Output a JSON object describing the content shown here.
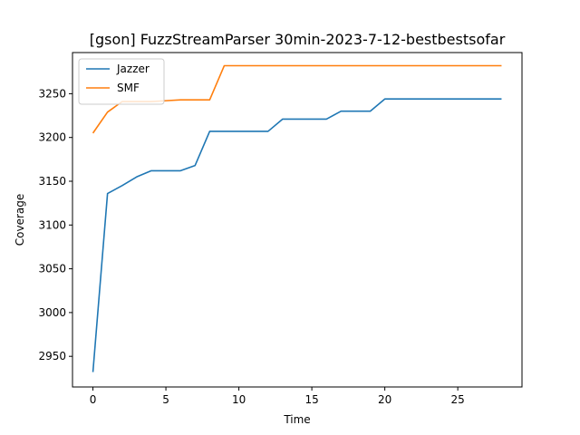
{
  "chart_data": {
    "type": "line",
    "title": "[gson] FuzzStreamParser 30min-2023-7-12-bestbestsofar",
    "xlabel": "Time",
    "ylabel": "Coverage",
    "xlim": [
      -1.4,
      29.4
    ],
    "ylim": [
      2915,
      3297
    ],
    "xticks": [
      0,
      5,
      10,
      15,
      20,
      25
    ],
    "yticks": [
      2950,
      3000,
      3050,
      3100,
      3150,
      3200,
      3250
    ],
    "grid": false,
    "legend_position": "upper left",
    "series": [
      {
        "name": "Jazzer",
        "color": "#1f77b4",
        "x": [
          0,
          1,
          2,
          3,
          4,
          5,
          6,
          7,
          8,
          9,
          10,
          11,
          12,
          13,
          14,
          15,
          16,
          17,
          18,
          19,
          20,
          21,
          22,
          23,
          24,
          25,
          26,
          27,
          28
        ],
        "y": [
          2932,
          3136,
          3145,
          3155,
          3162,
          3162,
          3162,
          3168,
          3207,
          3207,
          3207,
          3207,
          3207,
          3221,
          3221,
          3221,
          3221,
          3230,
          3230,
          3230,
          3244,
          3244,
          3244,
          3244,
          3244,
          3244,
          3244,
          3244,
          3244
        ]
      },
      {
        "name": "SMF",
        "color": "#ff7f0e",
        "x": [
          0,
          1,
          2,
          3,
          4,
          5,
          6,
          7,
          8,
          9,
          10,
          11,
          12,
          13,
          14,
          15,
          16,
          17,
          18,
          19,
          20,
          21,
          22,
          23,
          24,
          25,
          26,
          27,
          28
        ],
        "y": [
          3205,
          3229,
          3241,
          3241,
          3241,
          3242,
          3243,
          3243,
          3243,
          3282,
          3282,
          3282,
          3282,
          3282,
          3282,
          3282,
          3282,
          3282,
          3282,
          3282,
          3282,
          3282,
          3282,
          3282,
          3282,
          3282,
          3282,
          3282,
          3282
        ]
      }
    ]
  }
}
